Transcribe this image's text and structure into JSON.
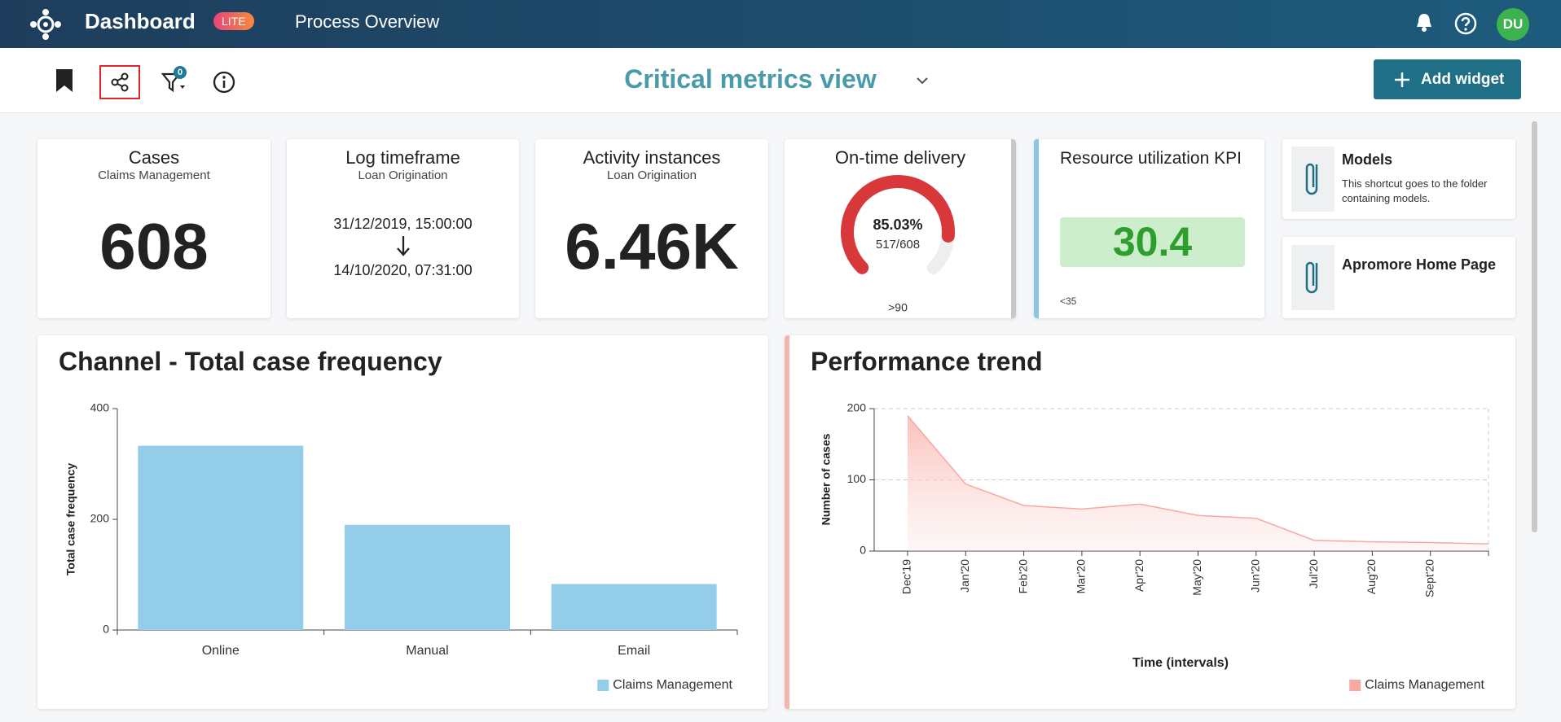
{
  "header": {
    "app": "Dashboard",
    "badge": "LITE",
    "section": "Process Overview",
    "avatar": "DU"
  },
  "toolbar": {
    "view_title": "Critical metrics view",
    "filter_count": 0,
    "add_button": "Add widget"
  },
  "widgets": {
    "cases": {
      "title": "Cases",
      "subtitle": "Claims Management",
      "value": 608
    },
    "log": {
      "title": "Log timeframe",
      "subtitle": "Loan Origination",
      "start": "31/12/2019, 15:00:00",
      "end": "14/10/2020, 07:31:00"
    },
    "activity": {
      "title": "Activity instances",
      "subtitle": "Loan Origination",
      "value": "6.46K"
    },
    "ontime": {
      "type": "gauge",
      "title": "On-time delivery",
      "values": [
        85.03
      ],
      "value_labels": [
        "85.03%"
      ],
      "range": [
        0,
        100
      ],
      "ratio": "517/608",
      "target": ">90",
      "color": "#d8383a"
    },
    "resource": {
      "title": "Resource utilization KPI",
      "value": 30.4,
      "threshold": "<35"
    },
    "models": {
      "title": "Models",
      "description": "This shortcut goes to the folder containing models."
    },
    "home": {
      "title": "Apromore Home Page"
    }
  },
  "chart_data": [
    {
      "type": "bar",
      "title": "Channel - Total case frequency",
      "y_label": "Total case frequency",
      "categories": [
        "Online",
        "Manual",
        "Email"
      ],
      "series": [
        {
          "name": "Claims Management",
          "color": "#94cde9",
          "values": [
            333,
            190,
            83
          ]
        }
      ],
      "ylim": [
        0,
        400
      ],
      "yticks": [
        0,
        200,
        400
      ]
    },
    {
      "type": "area",
      "title": "Performance trend",
      "x_label": "Time (intervals)",
      "y_label": "Number of cases",
      "categories": [
        "Dec'19",
        "Jan'20",
        "Feb'20",
        "Mar'20",
        "Apr'20",
        "May'20",
        "Jun'20",
        "Jul'20",
        "Aug'20",
        "Sept'20",
        null
      ],
      "series": [
        {
          "name": "Claims Management",
          "color": "#f7a9a2",
          "values": [
            190,
            94,
            64,
            59,
            66,
            50,
            46,
            15,
            13,
            12,
            10
          ]
        }
      ],
      "ylim": [
        0,
        200
      ],
      "yticks": [
        0,
        100,
        200
      ],
      "grid": true
    }
  ]
}
